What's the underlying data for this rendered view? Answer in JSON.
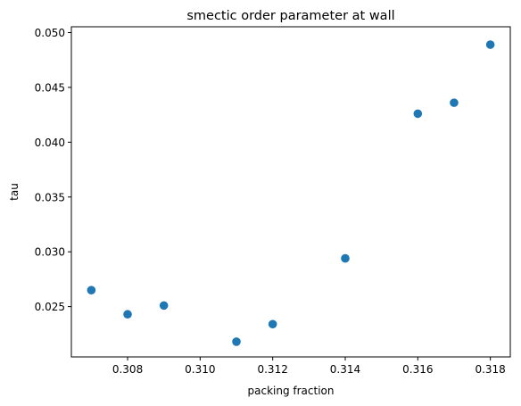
{
  "chart_data": {
    "type": "scatter",
    "title": "smectic order parameter at wall",
    "xlabel": "packing fraction",
    "ylabel": "tau",
    "xlim": [
      0.30645,
      0.31855
    ],
    "ylim": [
      0.02041,
      0.05053
    ],
    "x_ticks": [
      0.308,
      0.31,
      0.312,
      0.314,
      0.316,
      0.318
    ],
    "x_tick_labels": [
      "0.308",
      "0.310",
      "0.312",
      "0.314",
      "0.316",
      "0.318"
    ],
    "y_ticks": [
      0.025,
      0.03,
      0.035,
      0.04,
      0.045,
      0.05
    ],
    "y_tick_labels": [
      "0.025",
      "0.030",
      "0.035",
      "0.040",
      "0.045",
      "0.050"
    ],
    "grid": false,
    "marker_color": "#1f77b4",
    "series": [
      {
        "x": [
          0.307,
          0.308,
          0.309,
          0.311,
          0.312,
          0.314,
          0.316,
          0.317,
          0.318
        ],
        "y": [
          0.0265,
          0.0243,
          0.0251,
          0.0218,
          0.0234,
          0.0294,
          0.0426,
          0.0436,
          0.0489
        ]
      }
    ]
  }
}
